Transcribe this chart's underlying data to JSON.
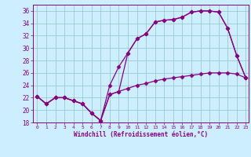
{
  "xlabel": "Windchill (Refroidissement éolien,°C)",
  "bg_color": "#cceeff",
  "grid_color": "#99cccc",
  "line_color": "#880088",
  "x_ticks": [
    0,
    1,
    2,
    3,
    4,
    5,
    6,
    7,
    8,
    9,
    10,
    11,
    12,
    13,
    14,
    15,
    16,
    17,
    18,
    19,
    20,
    21,
    22,
    23
  ],
  "ylim": [
    18,
    37
  ],
  "xlim": [
    -0.5,
    23.3
  ],
  "yticks": [
    18,
    20,
    22,
    24,
    26,
    28,
    30,
    32,
    34,
    36
  ],
  "line1": [
    22.2,
    21.0,
    22.0,
    22.0,
    21.5,
    21.0,
    19.5,
    18.3,
    24.0,
    27.0,
    29.2,
    31.5,
    32.3,
    34.2,
    34.5,
    34.6,
    35.0,
    35.8,
    36.0,
    36.0,
    35.8,
    33.2,
    28.8,
    25.2
  ],
  "line2": [
    22.2,
    21.0,
    22.0,
    22.0,
    21.5,
    21.0,
    19.5,
    18.3,
    22.5,
    23.0,
    29.2,
    31.5,
    32.3,
    34.2,
    34.5,
    34.6,
    35.0,
    35.8,
    36.0,
    36.0,
    35.8,
    33.2,
    28.8,
    25.2
  ],
  "line3": [
    22.2,
    21.0,
    22.0,
    22.0,
    21.5,
    21.0,
    19.5,
    18.3,
    22.5,
    23.0,
    23.5,
    24.0,
    24.3,
    24.7,
    25.0,
    25.2,
    25.4,
    25.6,
    25.8,
    26.0,
    26.0,
    26.0,
    25.8,
    25.2
  ]
}
